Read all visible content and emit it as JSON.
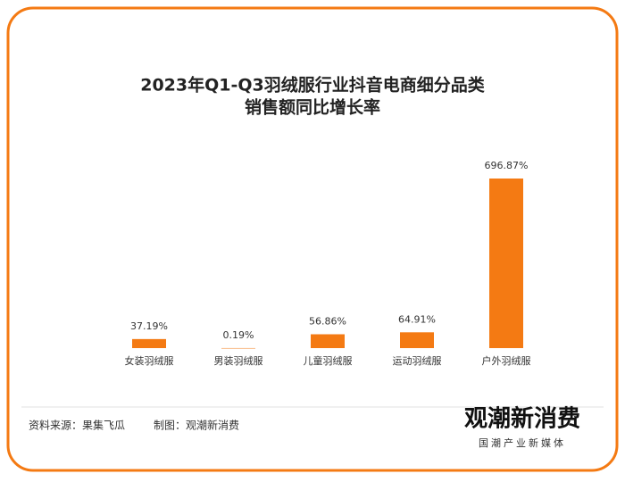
{
  "chart_data": {
    "type": "bar",
    "title": "2023年Q1-Q3羽绒服行业抖音电商细分品类",
    "subtitle": "销售额同比增长率",
    "categories": [
      "女装羽绒服",
      "男装羽绒服",
      "儿童羽绒服",
      "运动羽绒服",
      "户外羽绒服"
    ],
    "values": [
      37.19,
      0.19,
      56.86,
      64.91,
      696.87
    ],
    "value_labels": [
      "37.19%",
      "0.19%",
      "56.86%",
      "64.91%",
      "696.87%"
    ],
    "color": "#f47a13"
  },
  "footer": {
    "source": "资料来源：果集飞瓜",
    "author": "制图：观潮新消费",
    "logo": "观潮新消费",
    "logo_tagline": "国潮产业新媒体"
  }
}
